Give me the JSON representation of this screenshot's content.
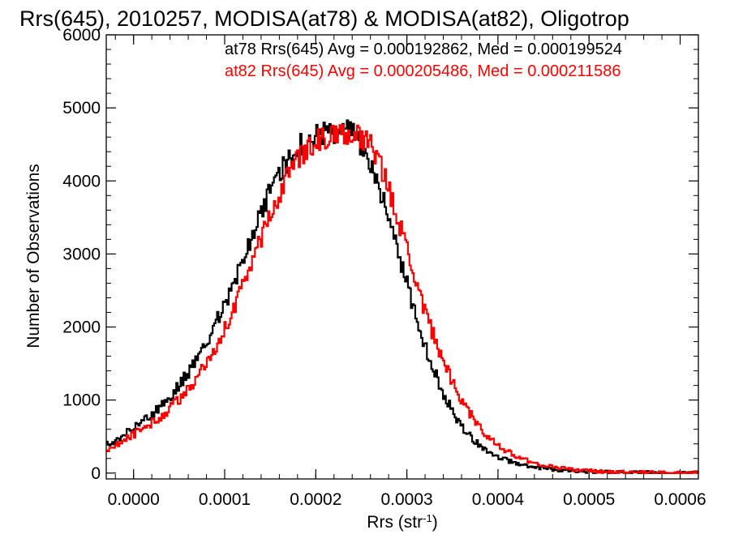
{
  "chart_data": {
    "type": "line",
    "title": "Rrs(645), 2010257, MODISA(at78) & MODISA(at82), Oligotrop",
    "xlabel": "Rrs (str",
    "xlabel_sup": "-1",
    "xlabel_close": ")",
    "ylabel": "Number of Observations",
    "xlim": [
      -3e-05,
      0.00062
    ],
    "ylim": [
      -80,
      6000
    ],
    "xticks": [
      0.0,
      0.0001,
      0.0002,
      0.0003,
      0.0004,
      0.0005,
      0.0006
    ],
    "xtick_labels": [
      "0.0000",
      "0.0001",
      "0.0002",
      "0.0003",
      "0.0004",
      "0.0005",
      "0.0006"
    ],
    "yticks": [
      0,
      1000,
      2000,
      3000,
      4000,
      5000,
      6000
    ],
    "ytick_labels": [
      "0",
      "1000",
      "2000",
      "3000",
      "4000",
      "5000",
      "6000"
    ],
    "legend_position": "top-right",
    "series": [
      {
        "name": "at78",
        "color": "#000000",
        "legend": "at78 Rrs(645) Avg = 0.000192862, Med = 0.000199524",
        "x": [
          -3e-05,
          -2e-05,
          -1e-05,
          0.0,
          1e-05,
          2e-05,
          3e-05,
          4e-05,
          5e-05,
          6e-05,
          7e-05,
          8e-05,
          9e-05,
          0.0001,
          0.00011,
          0.00012,
          0.00013,
          0.00014,
          0.00015,
          0.00016,
          0.00017,
          0.00018,
          0.00019,
          0.0002,
          0.00021,
          0.00022,
          0.00023,
          0.00024,
          0.00025,
          0.00026,
          0.00027,
          0.00028,
          0.00029,
          0.0003,
          0.00031,
          0.00032,
          0.00033,
          0.00034,
          0.00035,
          0.00036,
          0.00037,
          0.00038,
          0.00039,
          0.0004,
          0.00042,
          0.00044,
          0.00046,
          0.00048,
          0.0005,
          0.00052,
          0.00055,
          0.00058,
          0.0006,
          0.00062
        ],
        "y": [
          380,
          450,
          520,
          620,
          700,
          800,
          900,
          1050,
          1200,
          1380,
          1580,
          1800,
          2050,
          2300,
          2600,
          2900,
          3250,
          3550,
          3850,
          4100,
          4300,
          4450,
          4550,
          4620,
          4650,
          4680,
          4690,
          4650,
          4500,
          4250,
          3900,
          3500,
          3050,
          2600,
          2150,
          1750,
          1400,
          1100,
          850,
          650,
          500,
          380,
          290,
          220,
          130,
          80,
          50,
          30,
          20,
          12,
          6,
          3,
          2,
          1
        ]
      },
      {
        "name": "at82",
        "color": "#ff0000",
        "legend": "at82 Rrs(645) Avg = 0.000205486, Med = 0.000211586",
        "x": [
          -3e-05,
          -2e-05,
          -1e-05,
          0.0,
          1e-05,
          2e-05,
          3e-05,
          4e-05,
          5e-05,
          6e-05,
          7e-05,
          8e-05,
          9e-05,
          0.0001,
          0.00011,
          0.00012,
          0.00013,
          0.00014,
          0.00015,
          0.00016,
          0.00017,
          0.00018,
          0.00019,
          0.0002,
          0.00021,
          0.00022,
          0.00023,
          0.00024,
          0.00025,
          0.00026,
          0.00027,
          0.00028,
          0.00029,
          0.0003,
          0.00031,
          0.00032,
          0.00033,
          0.00034,
          0.00035,
          0.00036,
          0.00037,
          0.00038,
          0.00039,
          0.0004,
          0.00042,
          0.00044,
          0.00046,
          0.00048,
          0.0005,
          0.00052,
          0.00055,
          0.00058,
          0.0006,
          0.00062
        ],
        "y": [
          300,
          380,
          450,
          530,
          600,
          680,
          760,
          880,
          1000,
          1150,
          1320,
          1520,
          1740,
          1980,
          2250,
          2550,
          2870,
          3200,
          3520,
          3820,
          4080,
          4280,
          4420,
          4530,
          4600,
          4640,
          4650,
          4640,
          4600,
          4480,
          4250,
          3900,
          3500,
          3050,
          2620,
          2220,
          1860,
          1540,
          1260,
          1010,
          800,
          630,
          490,
          380,
          230,
          140,
          85,
          50,
          30,
          18,
          8,
          4,
          2,
          1
        ]
      }
    ]
  }
}
